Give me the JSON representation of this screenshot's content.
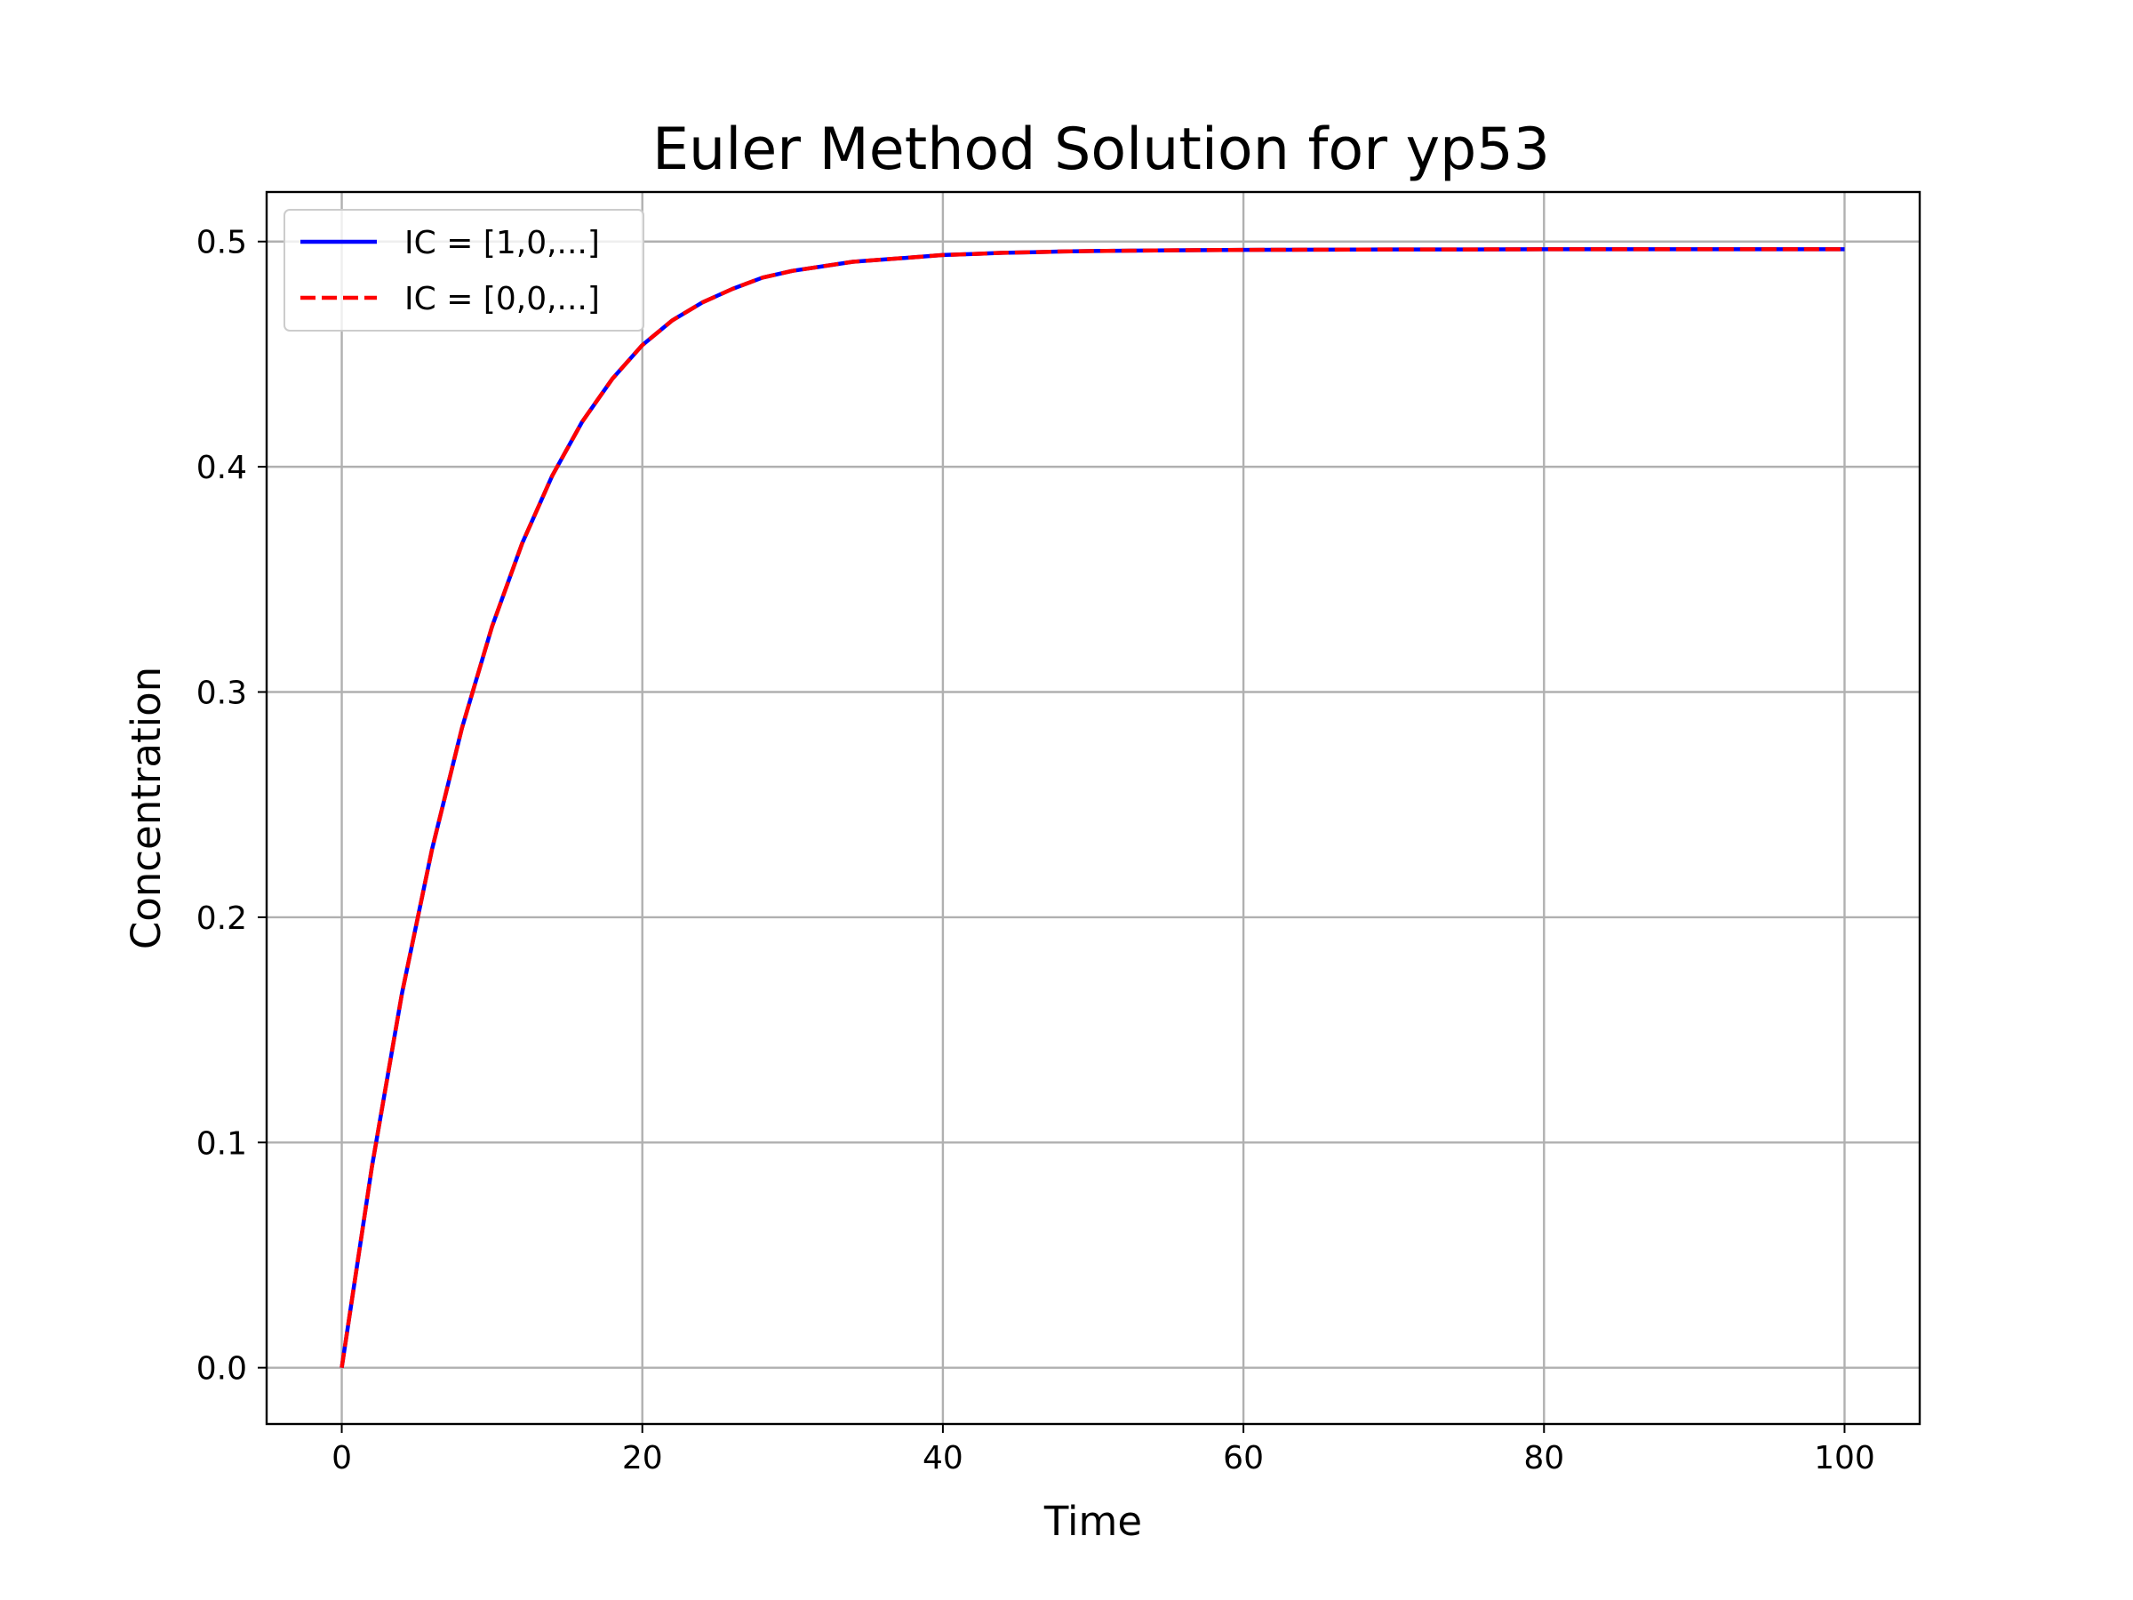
{
  "chart_data": {
    "type": "line",
    "title": "Euler Method Solution for yp53",
    "xlabel": "Time",
    "ylabel": "Concentration",
    "xlim": [
      -5,
      105
    ],
    "ylim": [
      -0.025,
      0.522
    ],
    "xticks": [
      0,
      20,
      40,
      60,
      80,
      100
    ],
    "xtick_labels": [
      "0",
      "20",
      "40",
      "60",
      "80",
      "100"
    ],
    "yticks": [
      0.0,
      0.1,
      0.2,
      0.3,
      0.4,
      0.5
    ],
    "ytick_labels": [
      "0.0",
      "0.1",
      "0.2",
      "0.3",
      "0.4",
      "0.5"
    ],
    "grid": true,
    "legend_position": "top-left",
    "x": [
      0,
      2,
      4,
      6,
      8,
      10,
      12,
      14,
      16,
      18,
      20,
      22,
      24,
      26,
      28,
      30,
      32,
      34,
      36,
      38,
      40,
      42,
      44,
      46,
      48,
      50,
      55,
      60,
      65,
      70,
      75,
      80,
      85,
      90,
      95,
      100
    ],
    "series": [
      {
        "name": "IC = [1,0,...]",
        "color": "#0000ff",
        "style": "solid",
        "values": [
          0.0,
          0.089,
          0.166,
          0.23,
          0.284,
          0.329,
          0.366,
          0.396,
          0.42,
          0.439,
          0.454,
          0.465,
          0.473,
          0.479,
          0.484,
          0.487,
          0.489,
          0.491,
          0.492,
          0.493,
          0.494,
          0.4945,
          0.495,
          0.4953,
          0.4956,
          0.4958,
          0.4961,
          0.4963,
          0.4964,
          0.4965,
          0.4965,
          0.4966,
          0.4966,
          0.4966,
          0.4966,
          0.4966
        ]
      },
      {
        "name": "IC = [0,0,...]",
        "color": "#ff0000",
        "style": "dashed",
        "values": [
          0.0,
          0.089,
          0.166,
          0.23,
          0.284,
          0.329,
          0.366,
          0.396,
          0.42,
          0.439,
          0.454,
          0.465,
          0.473,
          0.479,
          0.484,
          0.487,
          0.489,
          0.491,
          0.492,
          0.493,
          0.494,
          0.4945,
          0.495,
          0.4953,
          0.4956,
          0.4958,
          0.4961,
          0.4963,
          0.4964,
          0.4965,
          0.4965,
          0.4966,
          0.4966,
          0.4966,
          0.4966,
          0.4966
        ]
      }
    ]
  }
}
